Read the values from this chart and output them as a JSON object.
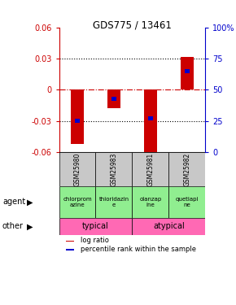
{
  "title": "GDS775 / 13461",
  "samples": [
    "GSM25980",
    "GSM25983",
    "GSM25981",
    "GSM25982"
  ],
  "log_ratios": [
    -0.052,
    -0.018,
    -0.062,
    0.032
  ],
  "percentile_ranks": [
    25,
    43,
    27,
    65
  ],
  "ylim": [
    -0.06,
    0.06
  ],
  "yticks_left": [
    -0.06,
    -0.03,
    0,
    0.03,
    0.06
  ],
  "yticks_right": [
    0,
    25,
    50,
    75,
    100
  ],
  "ytick_labels_left": [
    "-0.06",
    "-0.03",
    "0",
    "0.03",
    "0.06"
  ],
  "ytick_labels_right": [
    "0",
    "25",
    "50",
    "75",
    "100%"
  ],
  "agent_labels": [
    "chlorprom\nazine",
    "thioridazin\ne",
    "olanzap\nine",
    "quetiapi\nne"
  ],
  "other_color": "#FF69B4",
  "bar_color_red": "#CC0000",
  "bar_color_blue": "#0000CC",
  "bar_width": 0.35,
  "percentile_bar_width": 0.12,
  "percentile_bar_height": 0.004,
  "zero_line_color": "#CC0000",
  "dotted_line_color": "#000000",
  "left_axis_color": "#CC0000",
  "right_axis_color": "#0000CC",
  "sample_box_color": "#C8C8C8",
  "agent_box_color": "#90EE90",
  "legend_red": "log ratio",
  "legend_blue": "percentile rank within the sample"
}
